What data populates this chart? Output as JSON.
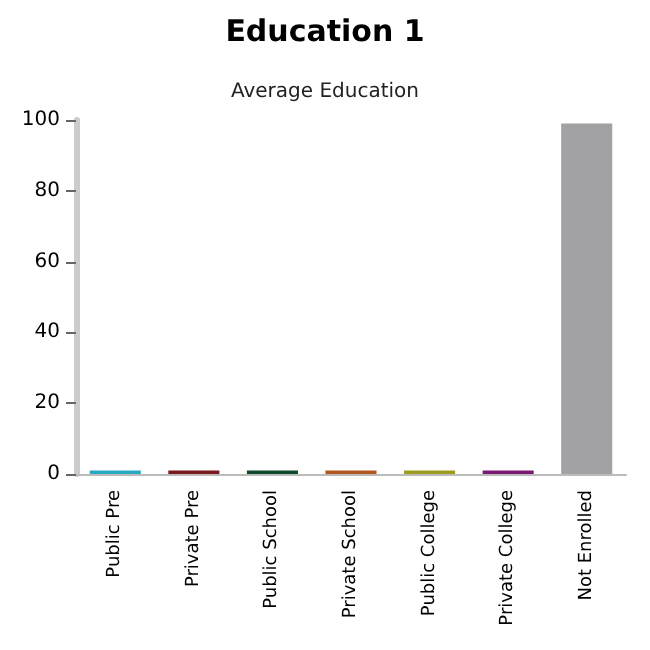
{
  "chart_data": {
    "type": "bar",
    "title": "Education 1",
    "subtitle": "Average Education",
    "categories": [
      "Public Pre",
      "Private Pre",
      "Public School",
      "Private School",
      "Public College",
      "Private College",
      "Not Enrolled"
    ],
    "values": [
      1,
      1,
      1,
      1,
      1,
      1,
      99
    ],
    "colors": [
      "#29a8c4",
      "#781a1e",
      "#0e4a2a",
      "#b0581e",
      "#9c9c1e",
      "#7a1a70",
      "#a2a2a4"
    ],
    "ylim": [
      0,
      100
    ],
    "yticks": [
      0,
      20,
      40,
      60,
      80,
      100
    ],
    "grid": false
  }
}
